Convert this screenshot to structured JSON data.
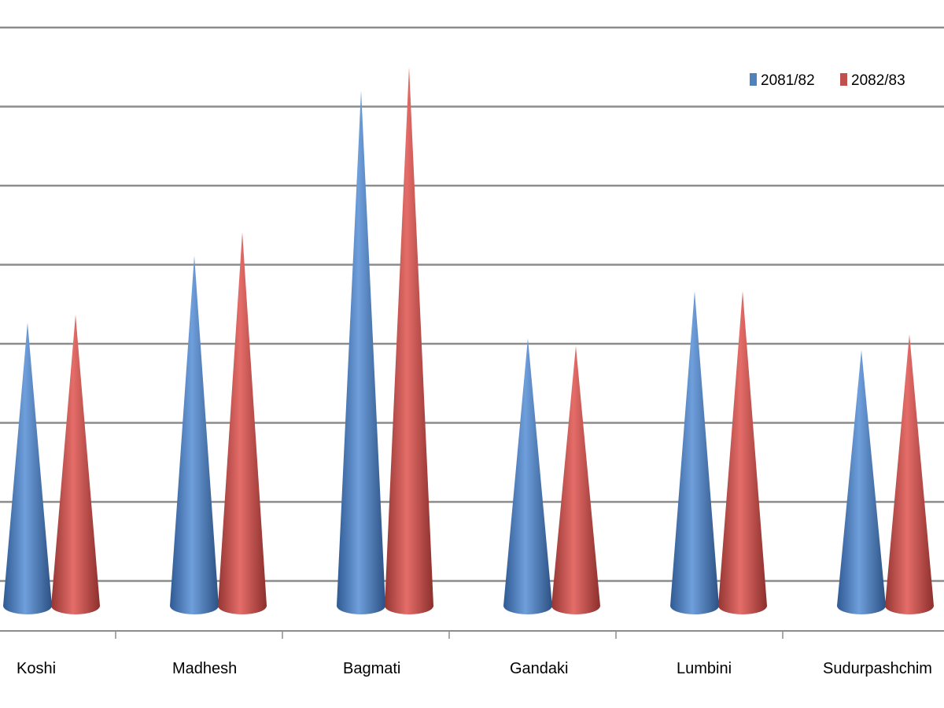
{
  "chart_data": {
    "type": "bar",
    "style": "cone",
    "categories": [
      "Koshi",
      "Madhesh",
      "Bagmati",
      "Gandaki",
      "Lumbini",
      "Sudurpashchim"
    ],
    "series": [
      {
        "name": "2081/82",
        "color": "#4F81BD",
        "values": [
          3.6,
          4.45,
          6.55,
          3.4,
          4.0,
          3.25
        ]
      },
      {
        "name": "2082/83",
        "color": "#C0504D",
        "values": [
          3.7,
          4.75,
          6.85,
          3.3,
          4.0,
          3.45
        ]
      }
    ],
    "ylim": [
      0,
      7.7
    ],
    "grid": true,
    "legend_position": "top-right",
    "title": "",
    "xlabel": "",
    "ylabel": ""
  }
}
